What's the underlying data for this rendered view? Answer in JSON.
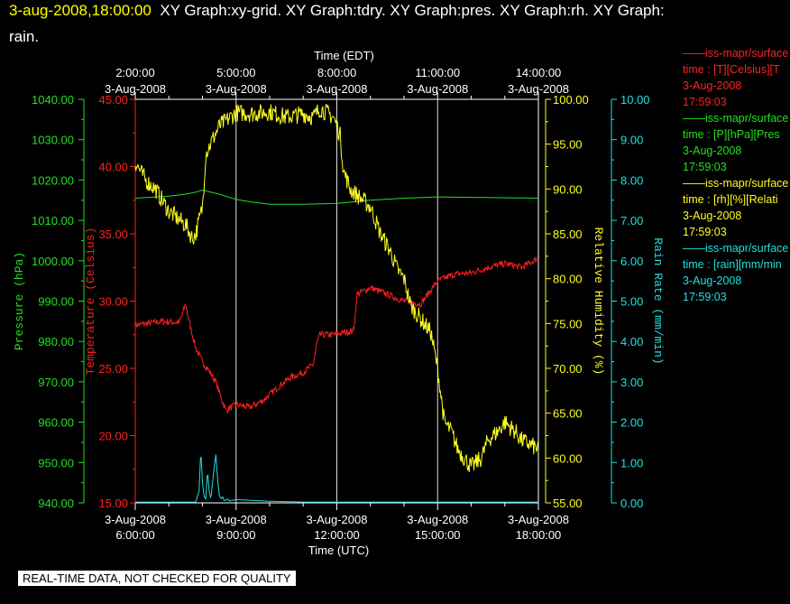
{
  "title": {
    "timestamp": "3-aug-2008,18:00:00",
    "line1_rest": "XY Graph:xy-grid.  XY Graph:tdry.  XY Graph:pres.  XY Graph:rh.  XY Graph:",
    "line2": "rain."
  },
  "note": "REAL-TIME DATA, NOT CHECKED FOR QUALITY",
  "legend": [
    {
      "line1": "iss-mapr/surface",
      "line2": "time : [T][Celsius][T",
      "line3": "3-Aug-2008",
      "line4": "17:59:03",
      "color": "#ff2020"
    },
    {
      "line1": "iss-mapr/surface",
      "line2": "time : [P][hPa][Pres",
      "line3": "3-Aug-2008",
      "line4": "17:59:03",
      "color": "#20e020"
    },
    {
      "line1": "iss-mapr/surface",
      "line2": "time : [rh][%][Relati",
      "line3": "3-Aug-2008",
      "line4": "17:59:03",
      "color": "#ffff20"
    },
    {
      "line1": "iss-mapr/surface",
      "line2": "time : [rain][mm/min",
      "line3": "3-Aug-2008",
      "line4": "17:59:03",
      "color": "#20e0e0"
    }
  ],
  "chart_data": {
    "type": "line",
    "top_axis": {
      "label": "Time (EDT)",
      "ticks": [
        {
          "t": 0,
          "time": "2:00:00",
          "date": "3-Aug-2008"
        },
        {
          "t": 3,
          "time": "5:00:00",
          "date": "3-Aug-2008"
        },
        {
          "t": 6,
          "time": "8:00:00",
          "date": "3-Aug-2008"
        },
        {
          "t": 9,
          "time": "11:00:00",
          "date": "3-Aug-2008"
        },
        {
          "t": 12,
          "time": "14:00:00",
          "date": "3-Aug-2008"
        }
      ]
    },
    "bottom_axis": {
      "label": "Time (UTC)",
      "ticks": [
        {
          "t": 0,
          "date": "3-Aug-2008",
          "time": "6:00:00"
        },
        {
          "t": 3,
          "date": "3-Aug-2008",
          "time": "9:00:00"
        },
        {
          "t": 6,
          "date": "3-Aug-2008",
          "time": "12:00:00"
        },
        {
          "t": 9,
          "date": "3-Aug-2008",
          "time": "15:00:00"
        },
        {
          "t": 12,
          "date": "3-Aug-2008",
          "time": "18:00:00"
        }
      ]
    },
    "grid_x": [
      3,
      6,
      9
    ],
    "axes": [
      {
        "id": "pres",
        "label": "Pressure (hPa)",
        "color": "#20e020",
        "min": 940,
        "max": 1040,
        "ticks": [
          "940.00",
          "950.00",
          "960.00",
          "970.00",
          "980.00",
          "990.00",
          "1000.00",
          "1010.00",
          "1020.00",
          "1030.00",
          "1040.00"
        ]
      },
      {
        "id": "tdry",
        "label": "Temperature (Celsius)",
        "color": "#ff2020",
        "min": 15,
        "max": 45,
        "ticks": [
          "15.00",
          "20.00",
          "25.00",
          "30.00",
          "35.00",
          "40.00",
          "45.00"
        ]
      },
      {
        "id": "rh",
        "label": "Relative Humidity (%)",
        "color": "#ffff20",
        "min": 55,
        "max": 100,
        "ticks": [
          "55.00",
          "60.00",
          "65.00",
          "70.00",
          "75.00",
          "80.00",
          "85.00",
          "90.00",
          "95.00",
          "100.00"
        ]
      },
      {
        "id": "rain",
        "label": "Rain Rate (mm/min)",
        "color": "#20e0e0",
        "min": 0,
        "max": 10,
        "ticks": [
          "0.00",
          "1.00",
          "2.00",
          "3.00",
          "4.00",
          "5.00",
          "6.00",
          "7.00",
          "8.00",
          "9.00",
          "10.00"
        ]
      }
    ],
    "series": [
      {
        "axis": "pres",
        "color": "#20e020",
        "points": [
          [
            0,
            1015.5
          ],
          [
            1,
            1016
          ],
          [
            1.5,
            1016.5
          ],
          [
            1.8,
            1017
          ],
          [
            2,
            1017.5
          ],
          [
            2.5,
            1016.5
          ],
          [
            3,
            1015.2
          ],
          [
            3.5,
            1014.5
          ],
          [
            4,
            1014
          ],
          [
            5,
            1014
          ],
          [
            6,
            1014.2
          ],
          [
            7,
            1015
          ],
          [
            8,
            1015.5
          ],
          [
            9,
            1015.8
          ],
          [
            10,
            1015.7
          ],
          [
            11,
            1015.6
          ],
          [
            12,
            1015.5
          ]
        ]
      },
      {
        "axis": "tdry",
        "color": "#ff2020",
        "points": [
          [
            0,
            28.2
          ],
          [
            0.8,
            28.5
          ],
          [
            1.3,
            28.4
          ],
          [
            1.4,
            29
          ],
          [
            1.5,
            29.8
          ],
          [
            1.6,
            28.5
          ],
          [
            1.8,
            26.5
          ],
          [
            2,
            25.5
          ],
          [
            2.2,
            24.8
          ],
          [
            2.4,
            24
          ],
          [
            2.6,
            22.5
          ],
          [
            2.7,
            21.9
          ],
          [
            3,
            22.3
          ],
          [
            3.4,
            22.1
          ],
          [
            3.8,
            22.6
          ],
          [
            4.2,
            23.5
          ],
          [
            4.6,
            24.3
          ],
          [
            5,
            24.7
          ],
          [
            5.3,
            25.3
          ],
          [
            5.4,
            26.8
          ],
          [
            5.5,
            27.5
          ],
          [
            5.9,
            27.5
          ],
          [
            6.3,
            27.7
          ],
          [
            6.5,
            27.8
          ],
          [
            6.6,
            30.5
          ],
          [
            7,
            31
          ],
          [
            7.5,
            30.5
          ],
          [
            8,
            30
          ],
          [
            8.5,
            29.8
          ],
          [
            9,
            31.5
          ],
          [
            9.5,
            32
          ],
          [
            10,
            32.1
          ],
          [
            10.5,
            32.5
          ],
          [
            11,
            32.8
          ],
          [
            11.5,
            32.5
          ],
          [
            12,
            33.2
          ]
        ],
        "jitter": 0.25
      },
      {
        "axis": "rh",
        "color": "#ffff20",
        "points": [
          [
            0,
            93
          ],
          [
            0.3,
            91
          ],
          [
            0.6,
            90
          ],
          [
            1,
            87.5
          ],
          [
            1.5,
            86
          ],
          [
            1.7,
            84.5
          ],
          [
            1.8,
            85
          ],
          [
            2,
            88
          ],
          [
            2.1,
            94
          ],
          [
            2.3,
            95.5
          ],
          [
            2.5,
            97
          ],
          [
            3,
            98.5
          ],
          [
            3.5,
            98.4
          ],
          [
            4,
            98.6
          ],
          [
            4.5,
            98
          ],
          [
            5,
            98.4
          ],
          [
            5.3,
            98
          ],
          [
            5.5,
            99
          ],
          [
            5.9,
            98
          ],
          [
            6.1,
            96
          ],
          [
            6.2,
            92
          ],
          [
            6.4,
            90
          ],
          [
            6.7,
            89
          ],
          [
            7,
            88
          ],
          [
            7.3,
            85
          ],
          [
            7.6,
            83
          ],
          [
            7.8,
            81
          ],
          [
            8,
            80
          ],
          [
            8.2,
            77
          ],
          [
            8.4,
            76
          ],
          [
            8.6,
            75
          ],
          [
            8.8,
            74
          ],
          [
            9,
            70
          ],
          [
            9.2,
            64
          ],
          [
            9.4,
            63
          ],
          [
            9.6,
            61
          ],
          [
            9.8,
            60
          ],
          [
            10,
            59
          ],
          [
            10.3,
            60
          ],
          [
            10.5,
            62
          ],
          [
            10.8,
            63
          ],
          [
            11,
            64
          ],
          [
            11.3,
            63
          ],
          [
            11.5,
            62
          ],
          [
            12,
            61
          ]
        ],
        "jitter": 1.0
      },
      {
        "axis": "rain",
        "color": "#20e0e0",
        "points": [
          [
            0,
            0.02
          ],
          [
            1.8,
            0.02
          ],
          [
            1.9,
            0.3
          ],
          [
            1.95,
            1.3
          ],
          [
            2,
            0.5
          ],
          [
            2.05,
            0.15
          ],
          [
            2.1,
            0.1
          ],
          [
            2.15,
            0.8
          ],
          [
            2.2,
            0.3
          ],
          [
            2.25,
            0.1
          ],
          [
            2.3,
            0.5
          ],
          [
            2.35,
            0.9
          ],
          [
            2.4,
            1.2
          ],
          [
            2.45,
            0.6
          ],
          [
            2.5,
            0.2
          ],
          [
            2.55,
            0.1
          ],
          [
            2.6,
            0.15
          ],
          [
            2.65,
            0.05
          ],
          [
            2.75,
            0.1
          ],
          [
            2.8,
            0.05
          ],
          [
            3,
            0.08
          ],
          [
            3.5,
            0.06
          ],
          [
            4,
            0.04
          ],
          [
            4.5,
            0.03
          ],
          [
            5,
            0.02
          ],
          [
            12,
            0.02
          ]
        ],
        "jitter": 0.0
      }
    ]
  }
}
